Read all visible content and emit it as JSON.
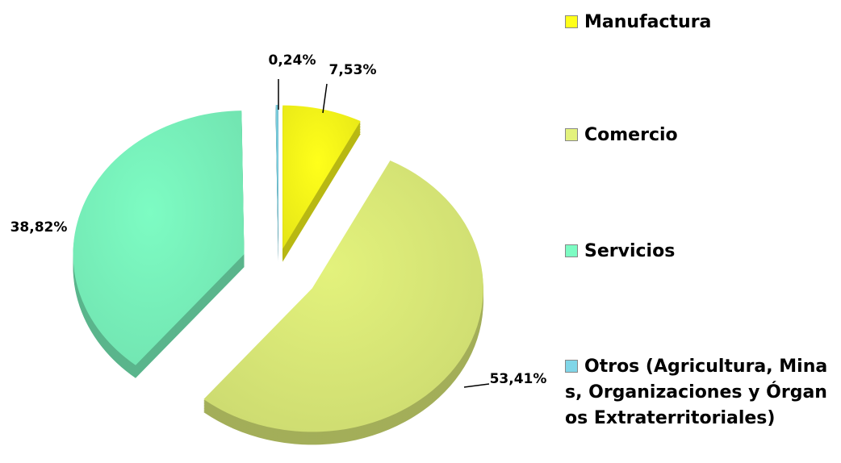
{
  "chart_data": {
    "type": "pie",
    "categories": [
      "Manufactura",
      "Comercio",
      "Servicios",
      "Otros (Agricultura, Minas, Organizaciones y Órganos Extraterritoriales)"
    ],
    "values": [
      7.53,
      53.41,
      38.82,
      0.24
    ],
    "value_labels": [
      "7,53%",
      "53,41%",
      "38,82%",
      "0,24%"
    ],
    "colors": [
      "#ffff1a",
      "#e3f27c",
      "#7dfcc3",
      "#80d6e8"
    ]
  }
}
